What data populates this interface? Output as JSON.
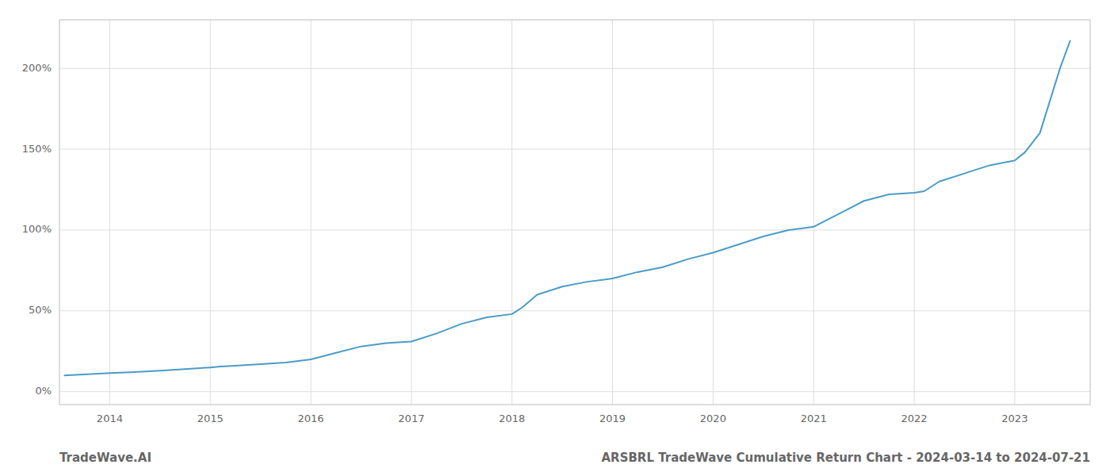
{
  "chart_data": {
    "type": "line",
    "title": "ARSBRL TradeWave Cumulative Return Chart - 2024-03-14 to 2024-07-21",
    "annotations": [
      "TradeWave.AI"
    ],
    "color": "#4a9cc7",
    "grid": true,
    "xlim": [
      2013.5,
      2023.75
    ],
    "ylim": [
      -8,
      230
    ],
    "xticks": [
      2014,
      2015,
      2016,
      2017,
      2018,
      2019,
      2020,
      2021,
      2022,
      2023
    ],
    "yticks": [
      {
        "value": 0,
        "label": "0%"
      },
      {
        "value": 50,
        "label": "50%"
      },
      {
        "value": 100,
        "label": "100%"
      },
      {
        "value": 150,
        "label": "150%"
      },
      {
        "value": 200,
        "label": "200%"
      }
    ],
    "x": [
      2013.55,
      2013.7,
      2013.85,
      2014.0,
      2014.2,
      2014.5,
      2014.75,
      2015.0,
      2015.1,
      2015.25,
      2015.5,
      2015.75,
      2016.0,
      2016.25,
      2016.5,
      2016.75,
      2017.0,
      2017.25,
      2017.5,
      2017.75,
      2018.0,
      2018.1,
      2018.25,
      2018.5,
      2018.75,
      2019.0,
      2019.25,
      2019.5,
      2019.75,
      2020.0,
      2020.25,
      2020.5,
      2020.75,
      2021.0,
      2021.25,
      2021.5,
      2021.75,
      2022.0,
      2022.1,
      2022.25,
      2022.5,
      2022.75,
      2023.0,
      2023.1,
      2023.25,
      2023.45,
      2023.55
    ],
    "values": [
      10,
      10.5,
      11,
      11.5,
      12,
      13,
      14,
      15,
      15.5,
      16,
      17,
      18,
      20,
      24,
      28,
      30,
      31,
      36,
      42,
      46,
      48,
      52,
      60,
      65,
      68,
      70,
      74,
      77,
      82,
      86,
      91,
      96,
      100,
      102,
      110,
      118,
      122,
      123,
      124,
      130,
      135,
      140,
      143,
      148,
      160,
      200,
      217
    ]
  }
}
